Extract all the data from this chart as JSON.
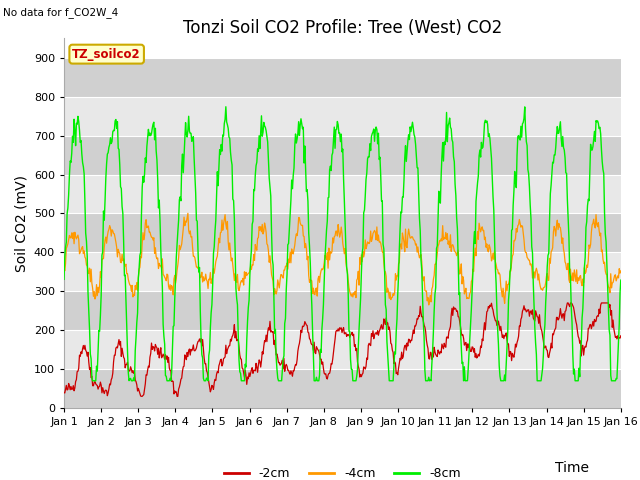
{
  "title": "Tonzi Soil CO2 Profile: Tree (West) CO2",
  "subtitle": "No data for f_CO2W_4",
  "xlabel": "Time",
  "ylabel": "Soil CO2 (mV)",
  "legend_label": "TZ_soilco2",
  "series_labels": [
    "-2cm",
    "-4cm",
    "-8cm"
  ],
  "series_colors": [
    "#cc0000",
    "#ff9900",
    "#00ee00"
  ],
  "xlim": [
    0,
    15
  ],
  "ylim": [
    0,
    950
  ],
  "yticks": [
    0,
    100,
    200,
    300,
    400,
    500,
    600,
    700,
    800,
    900
  ],
  "xtick_labels": [
    "Jan 1",
    "Jan 2",
    "Jan 3",
    "Jan 4",
    "Jan 5",
    "Jan 6",
    "Jan 7",
    "Jan 8",
    "Jan 9",
    "Jan 10",
    "Jan 11",
    "Jan 12",
    "Jan 13",
    "Jan 14",
    "Jan 15",
    "Jan 16"
  ],
  "background_color": "#ffffff",
  "band_dark": "#d0d0d0",
  "band_light": "#e8e8e8",
  "title_fontsize": 12,
  "axis_label_fontsize": 10,
  "tick_fontsize": 8,
  "legend_box_facecolor": "#ffffcc",
  "legend_box_edgecolor": "#ccaa00"
}
